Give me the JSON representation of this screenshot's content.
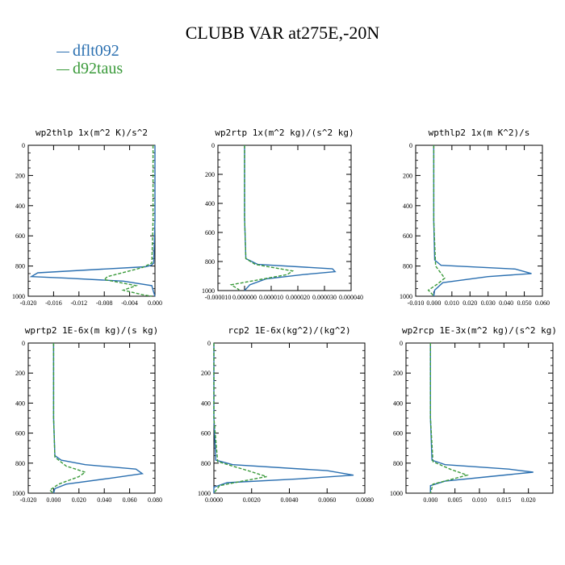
{
  "title": "CLUBB VAR at275E,-20N",
  "legend": [
    {
      "label": "dflt092",
      "color": "#2a6fb0"
    },
    {
      "label": "d92taus",
      "color": "#3a9a3a"
    }
  ],
  "chart_data": [
    {
      "type": "line",
      "title": "wp2thlp   1x(m^2 K)/s^2",
      "xlim": [
        -0.02,
        0.0
      ],
      "ylim": [
        1000,
        0
      ],
      "xticks": [
        -0.02,
        -0.016,
        -0.012,
        -0.008,
        -0.004,
        0.0
      ],
      "xtick_labels": [
        "-0.020",
        "-0.016",
        "-0.012",
        "-0.008",
        "-0.004",
        "0.000"
      ],
      "yticks": [
        0,
        200,
        400,
        600,
        800,
        1000
      ],
      "ytick_labels": [
        "0",
        "200",
        "400",
        "600",
        "800",
        "1000"
      ],
      "series": [
        {
          "name": "dflt092",
          "x": [
            0.0,
            0.0,
            -0.0002,
            -0.0006,
            -0.0015,
            -0.008,
            -0.0185,
            -0.0195,
            -0.014,
            -0.005,
            -0.0005,
            -0.0003,
            0.0
          ],
          "y": [
            0,
            500,
            780,
            795,
            805,
            820,
            845,
            870,
            880,
            900,
            930,
            960,
            1000
          ]
        },
        {
          "name": "d92taus",
          "x": [
            -0.0003,
            -0.0003,
            -0.0005,
            -0.002,
            -0.0075,
            -0.008,
            -0.003,
            -0.005,
            -0.002,
            -0.0005
          ],
          "y": [
            0,
            500,
            780,
            810,
            870,
            890,
            930,
            960,
            990,
            1000
          ]
        }
      ]
    },
    {
      "type": "line",
      "title": "wp2rtp   1x(m^2 kg)/(s^2 kg)",
      "xlim": [
        -1e-05,
        4e-05
      ],
      "ylim": [
        1000,
        0
      ],
      "xticks": [
        -1e-05,
        0.0,
        1e-05,
        2e-05,
        3e-05,
        4e-05
      ],
      "xtick_labels": [
        "-0.000010",
        "0.000000",
        "0.000010",
        "0.000020",
        "0.000030",
        "0.000040"
      ],
      "yticks": [
        0,
        200,
        400,
        600,
        800,
        1000
      ],
      "ytick_labels": [
        "0",
        "200",
        "400",
        "600",
        "800",
        "1000"
      ],
      "series": [
        {
          "name": "dflt092",
          "x": [
            0.0,
            0.0,
            5e-07,
            5e-06,
            3.3e-05,
            3.4e-05,
            2.2e-05,
            8e-06,
            2e-06,
            0.0
          ],
          "y": [
            0,
            500,
            780,
            820,
            850,
            870,
            890,
            920,
            960,
            1000
          ]
        },
        {
          "name": "d92taus",
          "x": [
            0.0,
            0.0,
            5e-07,
            4e-06,
            1.8e-05,
            1.6e-05,
            4e-06,
            -5e-06,
            -2e-06
          ],
          "y": [
            0,
            500,
            780,
            820,
            865,
            890,
            930,
            960,
            995
          ]
        }
      ]
    },
    {
      "type": "line",
      "title": "wpthlp2   1x(m K^2)/s",
      "xlim": [
        -0.01,
        0.06
      ],
      "ylim": [
        1000,
        0
      ],
      "xticks": [
        -0.01,
        0.0,
        0.01,
        0.02,
        0.03,
        0.04,
        0.05,
        0.06
      ],
      "xtick_labels": [
        "-0.010",
        "0.000",
        "0.010",
        "0.020",
        "0.030",
        "0.040",
        "0.050",
        "0.060"
      ],
      "yticks": [
        0,
        200,
        400,
        600,
        800,
        1000
      ],
      "ytick_labels": [
        "0",
        "200",
        "400",
        "600",
        "800",
        "1000"
      ],
      "series": [
        {
          "name": "dflt092",
          "x": [
            0.0,
            0.0,
            0.0005,
            0.004,
            0.045,
            0.054,
            0.03,
            0.005,
            0.0005,
            0.0
          ],
          "y": [
            0,
            500,
            760,
            795,
            820,
            850,
            870,
            910,
            960,
            1000
          ]
        },
        {
          "name": "d92taus",
          "x": [
            0.0,
            0.0,
            0.001,
            0.006,
            0.002,
            -0.003,
            -0.001,
            0.0
          ],
          "y": [
            0,
            500,
            800,
            880,
            920,
            960,
            985,
            1000
          ]
        }
      ]
    },
    {
      "type": "line",
      "title": "wprtp2   1E-6x(m kg)/(s kg)",
      "xlim": [
        -0.02,
        0.08
      ],
      "ylim": [
        1000,
        0
      ],
      "xticks": [
        -0.02,
        0.0,
        0.02,
        0.04,
        0.06,
        0.08
      ],
      "xtick_labels": [
        "-0.020",
        "0.000",
        "0.020",
        "0.040",
        "0.060",
        "0.080"
      ],
      "yticks": [
        0,
        200,
        400,
        600,
        800,
        1000
      ],
      "ytick_labels": [
        "0",
        "200",
        "400",
        "600",
        "800",
        "1000"
      ],
      "series": [
        {
          "name": "dflt092",
          "x": [
            0.0,
            0.0,
            0.001,
            0.006,
            0.025,
            0.065,
            0.07,
            0.045,
            0.01,
            0.001,
            0.0
          ],
          "y": [
            0,
            500,
            750,
            780,
            810,
            840,
            870,
            900,
            940,
            970,
            1000
          ]
        },
        {
          "name": "d92taus",
          "x": [
            0.0,
            0.0,
            0.001,
            0.01,
            0.025,
            0.02,
            0.004,
            -0.003,
            0.0
          ],
          "y": [
            0,
            500,
            760,
            820,
            860,
            890,
            940,
            980,
            1000
          ]
        }
      ]
    },
    {
      "type": "line",
      "title": "rcp2   1E-6x(kg^2)/(kg^2)",
      "xlim": [
        0.0,
        0.008
      ],
      "ylim": [
        1000,
        0
      ],
      "xticks": [
        0.0,
        0.002,
        0.004,
        0.006,
        0.008
      ],
      "xtick_labels": [
        "0.0000",
        "0.0020",
        "0.0040",
        "0.0060",
        "0.0080"
      ],
      "yticks": [
        0,
        200,
        400,
        600,
        800,
        1000
      ],
      "ytick_labels": [
        "0",
        "200",
        "400",
        "600",
        "800",
        "1000"
      ],
      "series": [
        {
          "name": "dflt092",
          "x": [
            0.0,
            0.0,
            0.0001,
            0.001,
            0.006,
            0.0074,
            0.0045,
            0.0007,
            0.0,
            0.0
          ],
          "y": [
            0,
            500,
            780,
            810,
            850,
            880,
            905,
            930,
            960,
            1000
          ]
        },
        {
          "name": "d92taus",
          "x": [
            0.0,
            0.0,
            0.0002,
            0.0018,
            0.0028,
            0.0015,
            0.0003,
            0.0
          ],
          "y": [
            0,
            500,
            790,
            850,
            890,
            920,
            950,
            1000
          ]
        }
      ]
    },
    {
      "type": "line",
      "title": "wp2rcp   1E-3x(m^2 kg)/(s^2 kg)",
      "xlim": [
        -0.005,
        0.025
      ],
      "ylim": [
        1000,
        0
      ],
      "xticks": [
        0.0,
        0.005,
        0.01,
        0.015,
        0.02
      ],
      "xtick_labels": [
        "0.000",
        "0.005",
        "0.010",
        "0.015",
        "0.020"
      ],
      "yticks": [
        0,
        200,
        400,
        600,
        800,
        1000
      ],
      "ytick_labels": [
        "0",
        "200",
        "400",
        "600",
        "800",
        "1000"
      ],
      "series": [
        {
          "name": "dflt092",
          "x": [
            0.0,
            0.0,
            0.0003,
            0.003,
            0.016,
            0.021,
            0.012,
            0.003,
            0.0,
            0.0
          ],
          "y": [
            0,
            500,
            780,
            810,
            840,
            860,
            890,
            920,
            950,
            1000
          ]
        },
        {
          "name": "d92taus",
          "x": [
            0.0,
            0.0,
            0.0005,
            0.004,
            0.0075,
            0.004,
            0.0005,
            0.0
          ],
          "y": [
            0,
            500,
            790,
            840,
            880,
            910,
            940,
            1000
          ]
        }
      ]
    }
  ]
}
